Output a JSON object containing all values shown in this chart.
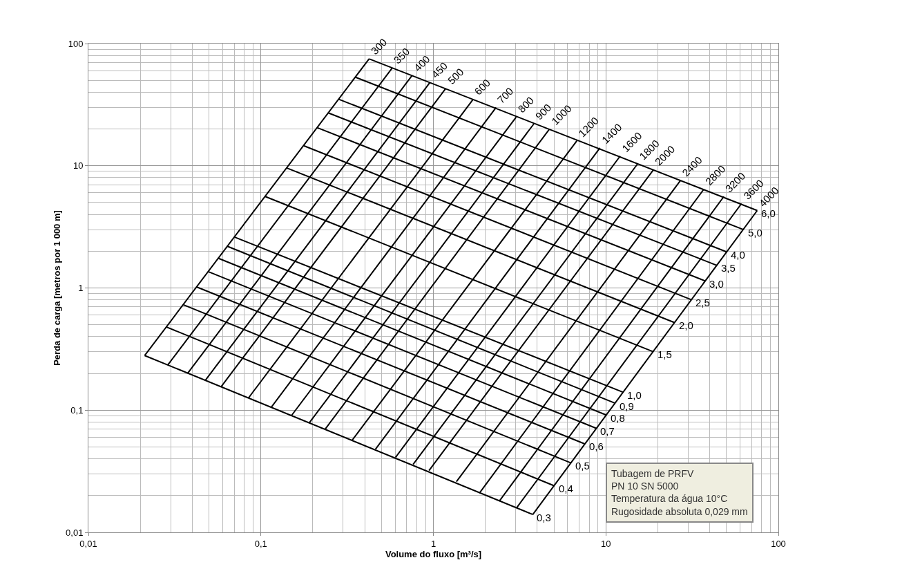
{
  "chart_data": {
    "type": "line",
    "xlabel": "Volume do fluxo [m³/s]",
    "ylabel": "Perda de carga [metros por 1 000 m]",
    "log": "xy",
    "grid": true,
    "legend": false,
    "marker": "none",
    "line_style": "solid",
    "xlim": [
      0.01,
      100
    ],
    "ylim": [
      0.01,
      100
    ],
    "xticks": [
      {
        "value": 0.01,
        "label": "0,01"
      },
      {
        "value": 0.1,
        "label": "0,1"
      },
      1,
      10,
      100
    ],
    "yticks": [
      {
        "value": 0.01,
        "label": "0,01"
      },
      {
        "value": 0.1,
        "label": "0,1"
      },
      1,
      10,
      100
    ],
    "annotations": [
      "Tubagem de PRFV",
      "PN 10 SN 5000",
      "Temperatura da água 10°C",
      "Rugosidade absoluta 0,029 mm"
    ],
    "series": [
      {
        "name": "300",
        "color": "#000000",
        "x": [
          0.0212,
          0.424
        ],
        "values": [
          0.28,
          75
        ]
      },
      {
        "name": "350",
        "color": "#000000",
        "x": [
          0.0289,
          0.577
        ],
        "values": [
          0.235,
          63
        ]
      },
      {
        "name": "400",
        "color": "#000000",
        "x": [
          0.0377,
          0.754
        ],
        "values": [
          0.201,
          55
        ]
      },
      {
        "name": "450",
        "color": "#000000",
        "x": [
          0.0477,
          0.954
        ],
        "values": [
          0.176,
          48
        ]
      },
      {
        "name": "500",
        "color": "#000000",
        "x": [
          0.0589,
          1.18
        ],
        "values": [
          0.156,
          43
        ]
      },
      {
        "name": "600",
        "color": "#000000",
        "x": [
          0.0848,
          1.7
        ],
        "values": [
          0.126,
          35
        ]
      },
      {
        "name": "700",
        "color": "#000000",
        "x": [
          0.115,
          2.31
        ],
        "values": [
          0.106,
          30
        ]
      },
      {
        "name": "800",
        "color": "#000000",
        "x": [
          0.151,
          3.02
        ],
        "values": [
          0.091,
          25
        ]
      },
      {
        "name": "900",
        "color": "#000000",
        "x": [
          0.191,
          3.82
        ],
        "values": [
          0.079,
          22
        ]
      },
      {
        "name": "1000",
        "color": "#000000",
        "x": [
          0.236,
          4.71
        ],
        "values": [
          0.07,
          20
        ]
      },
      {
        "name": "1200",
        "color": "#000000",
        "x": [
          0.339,
          6.79
        ],
        "values": [
          0.057,
          16
        ]
      },
      {
        "name": "1400",
        "color": "#000000",
        "x": [
          0.462,
          9.24
        ],
        "values": [
          0.048,
          14
        ]
      },
      {
        "name": "1600",
        "color": "#000000",
        "x": [
          0.603,
          12.1
        ],
        "values": [
          0.041,
          12
        ]
      },
      {
        "name": "1800",
        "color": "#000000",
        "x": [
          0.763,
          15.3
        ],
        "values": [
          0.036,
          10.4
        ]
      },
      {
        "name": "2000",
        "color": "#000000",
        "x": [
          0.943,
          18.9
        ],
        "values": [
          0.032,
          9.3
        ]
      },
      {
        "name": "2400",
        "color": "#000000",
        "x": [
          1.36,
          27.1
        ],
        "values": [
          0.026,
          7.6
        ]
      },
      {
        "name": "2800",
        "color": "#000000",
        "x": [
          1.85,
          36.9
        ],
        "values": [
          0.021,
          6.4
        ]
      },
      {
        "name": "3200",
        "color": "#000000",
        "x": [
          2.41,
          48.3
        ],
        "values": [
          0.018,
          5.6
        ]
      },
      {
        "name": "3600",
        "color": "#000000",
        "x": [
          3.05,
          61.1
        ],
        "values": [
          0.016,
          4.9
        ]
      },
      {
        "name": "4000",
        "color": "#000000",
        "x": [
          3.77,
          75.4
        ],
        "values": [
          0.014,
          4.3
        ]
      },
      {
        "name": "0,3",
        "color": "#000000",
        "x": [
          0.0212,
          3.77
        ],
        "values": [
          0.28,
          0.014
        ]
      },
      {
        "name": "0,4",
        "color": "#000000",
        "x": [
          0.0283,
          5.03
        ],
        "values": [
          0.48,
          0.024
        ]
      },
      {
        "name": "0,5",
        "color": "#000000",
        "x": [
          0.0354,
          6.28
        ],
        "values": [
          0.73,
          0.037
        ]
      },
      {
        "name": "0,6",
        "color": "#000000",
        "x": [
          0.0424,
          7.54
        ],
        "values": [
          1.02,
          0.053
        ]
      },
      {
        "name": "0,7",
        "color": "#000000",
        "x": [
          0.0495,
          8.8
        ],
        "values": [
          1.36,
          0.071
        ]
      },
      {
        "name": "0,8",
        "color": "#000000",
        "x": [
          0.0566,
          10.1
        ],
        "values": [
          1.75,
          0.091
        ]
      },
      {
        "name": "0,9",
        "color": "#000000",
        "x": [
          0.0636,
          11.3
        ],
        "values": [
          2.2,
          0.114
        ]
      },
      {
        "name": "1,0",
        "color": "#000000",
        "x": [
          0.0707,
          12.6
        ],
        "values": [
          2.6,
          0.14
        ]
      },
      {
        "name": "1,5",
        "color": "#000000",
        "x": [
          0.106,
          18.9
        ],
        "values": [
          5.6,
          0.3
        ]
      },
      {
        "name": "2,0",
        "color": "#000000",
        "x": [
          0.141,
          25.1
        ],
        "values": [
          9.6,
          0.52
        ]
      },
      {
        "name": "2,5",
        "color": "#000000",
        "x": [
          0.177,
          31.4
        ],
        "values": [
          14.6,
          0.8
        ]
      },
      {
        "name": "3,0",
        "color": "#000000",
        "x": [
          0.212,
          37.7
        ],
        "values": [
          20.5,
          1.14
        ]
      },
      {
        "name": "3,5",
        "color": "#000000",
        "x": [
          0.247,
          44
        ],
        "values": [
          27,
          1.53
        ]
      },
      {
        "name": "4,0",
        "color": "#000000",
        "x": [
          0.283,
          50.3
        ],
        "values": [
          35,
          1.97
        ]
      },
      {
        "name": "5,0",
        "color": "#000000",
        "x": [
          0.354,
          62.8
        ],
        "values": [
          53,
          3
        ]
      },
      {
        "name": "6,0",
        "color": "#000000",
        "x": [
          0.424,
          75.4
        ],
        "values": [
          75,
          4.3
        ]
      }
    ]
  }
}
